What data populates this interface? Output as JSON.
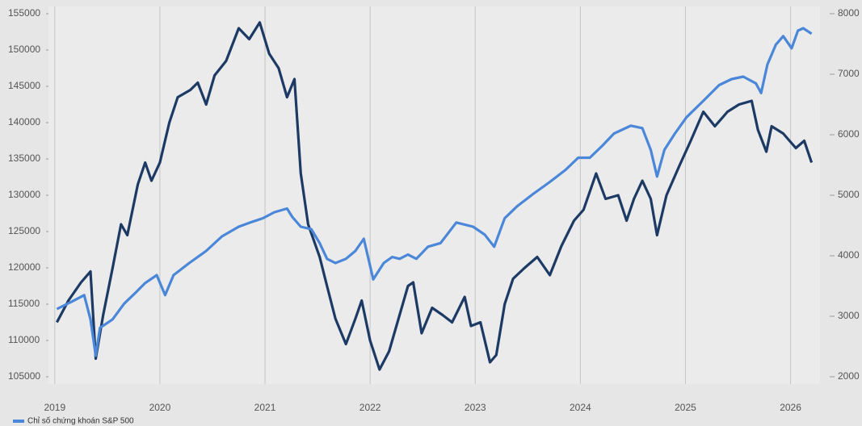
{
  "chart_data": {
    "type": "line",
    "xlim": [
      2018.94,
      2026.28
    ],
    "xticks": [
      2019,
      2020,
      2021,
      2022,
      2023,
      2024,
      2025,
      2026
    ],
    "ylim": [
      104000,
      156000
    ],
    "yticks": [
      105000,
      110000,
      115000,
      120000,
      125000,
      130000,
      135000,
      140000,
      145000,
      150000,
      155000
    ],
    "y2lim": [
      1880,
      8120
    ],
    "y2ticks": [
      2000,
      3000,
      4000,
      5000,
      6000,
      7000,
      8000
    ],
    "grid": true,
    "series": [
      {
        "color": "#1c3a64",
        "axis": "y",
        "x": [
          2019.02,
          2019.13,
          2019.25,
          2019.34,
          2019.39,
          2019.46,
          2019.55,
          2019.63,
          2019.69,
          2019.79,
          2019.86,
          2019.92,
          2020.0,
          2020.09,
          2020.17,
          2020.29,
          2020.36,
          2020.44,
          2020.52,
          2020.63,
          2020.75,
          2020.85,
          2020.95,
          2021.04,
          2021.13,
          2021.21,
          2021.28,
          2021.34,
          2021.41,
          2021.52,
          2021.59,
          2021.67,
          2021.77,
          2021.86,
          2021.92,
          2022.0,
          2022.09,
          2022.18,
          2022.28,
          2022.36,
          2022.41,
          2022.49,
          2022.59,
          2022.69,
          2022.78,
          2022.9,
          2022.96,
          2023.05,
          2023.14,
          2023.2,
          2023.28,
          2023.36,
          2023.47,
          2023.59,
          2023.71,
          2023.82,
          2023.94,
          2024.03,
          2024.15,
          2024.24,
          2024.36,
          2024.44,
          2024.51,
          2024.59,
          2024.67,
          2024.73,
          2024.82,
          2024.94,
          2025.05,
          2025.17,
          2025.28,
          2025.4,
          2025.51,
          2025.63,
          2025.69,
          2025.77,
          2025.82,
          2025.93,
          2026.05,
          2026.13,
          2026.2
        ],
        "values": [
          112500,
          115500,
          118000,
          119500,
          107500,
          113500,
          120000,
          126000,
          124500,
          131500,
          134500,
          132000,
          134500,
          140000,
          143500,
          144500,
          145500,
          142500,
          146500,
          148500,
          153000,
          151500,
          153800,
          149500,
          147500,
          143500,
          146000,
          133000,
          126000,
          121500,
          117500,
          113000,
          109500,
          113000,
          115500,
          110000,
          106000,
          108500,
          113500,
          117500,
          118000,
          111000,
          114500,
          113500,
          112500,
          116000,
          112000,
          112500,
          107000,
          108000,
          115000,
          118500,
          120000,
          121500,
          119000,
          123000,
          126500,
          128000,
          133000,
          129500,
          130000,
          126500,
          129500,
          132000,
          129500,
          124500,
          130000,
          134000,
          137500,
          141500,
          139500,
          141500,
          142500,
          143000,
          139000,
          136000,
          139500,
          138500,
          136500,
          137500,
          134500
        ]
      },
      {
        "name": "Chỉ số chứng khoán S&P 500",
        "color": "#4b87d8",
        "axis": "y2",
        "x": [
          2019.02,
          2019.17,
          2019.28,
          2019.34,
          2019.39,
          2019.43,
          2019.55,
          2019.66,
          2019.78,
          2019.86,
          2019.97,
          2020.05,
          2020.13,
          2020.28,
          2020.44,
          2020.59,
          2020.75,
          2020.86,
          2020.98,
          2021.09,
          2021.21,
          2021.26,
          2021.34,
          2021.44,
          2021.52,
          2021.59,
          2021.67,
          2021.77,
          2021.86,
          2021.94,
          2022.03,
          2022.13,
          2022.21,
          2022.28,
          2022.36,
          2022.44,
          2022.55,
          2022.67,
          2022.82,
          2022.98,
          2023.09,
          2023.18,
          2023.28,
          2023.4,
          2023.55,
          2023.71,
          2023.86,
          2023.98,
          2024.09,
          2024.21,
          2024.32,
          2024.48,
          2024.59,
          2024.67,
          2024.73,
          2024.8,
          2024.9,
          2025.01,
          2025.17,
          2025.32,
          2025.44,
          2025.55,
          2025.67,
          2025.72,
          2025.78,
          2025.86,
          2025.93,
          2026.01,
          2026.07,
          2026.12,
          2026.2
        ],
        "values": [
          3120,
          3250,
          3350,
          2950,
          2350,
          2810,
          2950,
          3210,
          3410,
          3550,
          3680,
          3350,
          3680,
          3880,
          4080,
          4320,
          4480,
          4550,
          4620,
          4720,
          4780,
          4640,
          4480,
          4440,
          4210,
          3950,
          3880,
          3950,
          4080,
          4280,
          3610,
          3880,
          3980,
          3950,
          4020,
          3950,
          4150,
          4210,
          4550,
          4480,
          4350,
          4150,
          4620,
          4820,
          5020,
          5220,
          5420,
          5620,
          5620,
          5820,
          6020,
          6150,
          6110,
          5750,
          5310,
          5750,
          6020,
          6290,
          6560,
          6820,
          6920,
          6960,
          6850,
          6690,
          7160,
          7490,
          7630,
          7430,
          7720,
          7760,
          7670
        ]
      }
    ]
  }
}
